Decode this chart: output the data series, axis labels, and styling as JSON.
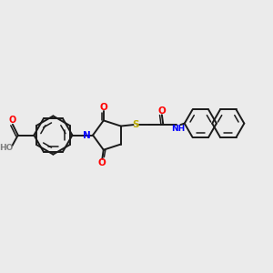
{
  "background_color": "#ebebeb",
  "bond_color": "#1a1a1a",
  "nitrogen_color": "#0000ff",
  "oxygen_color": "#ff0000",
  "sulfur_color": "#bbaa00",
  "gray_color": "#808080",
  "figsize": [
    3.0,
    3.0
  ],
  "dpi": 100,
  "xlim": [
    0,
    10
  ],
  "ylim": [
    0,
    10
  ]
}
